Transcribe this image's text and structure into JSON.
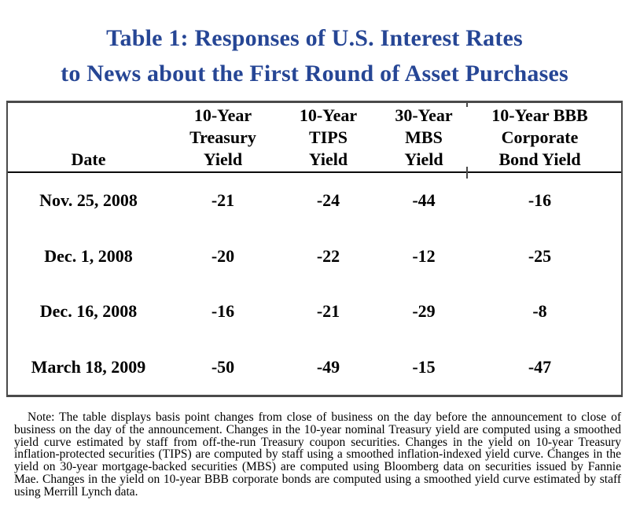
{
  "title": {
    "line1": "Table 1: Responses of U.S. Interest Rates",
    "line2": "to News about the First Round of Asset Purchases"
  },
  "colors": {
    "title_blue": "#264695",
    "table_border": "#4a4a4a",
    "text": "#000000"
  },
  "table": {
    "header": {
      "date_label": "Date",
      "cols": [
        {
          "lines": [
            "10-Year",
            "Treasury",
            "Yield"
          ]
        },
        {
          "lines": [
            "10-Year",
            "TIPS",
            "Yield"
          ]
        },
        {
          "lines": [
            "30-Year",
            "MBS",
            "Yield"
          ]
        },
        {
          "lines": [
            "10-Year BBB",
            "Corporate",
            "Bond Yield"
          ]
        }
      ]
    },
    "rows": [
      {
        "date": "Nov. 25, 2008",
        "values": [
          "-21",
          "-24",
          "-44",
          "-16"
        ]
      },
      {
        "date": "Dec. 1, 2008",
        "values": [
          "-20",
          "-22",
          "-12",
          "-25"
        ]
      },
      {
        "date": "Dec. 16, 2008",
        "values": [
          "-16",
          "-21",
          "-29",
          "-8"
        ]
      },
      {
        "date": "March 18, 2009",
        "values": [
          "-50",
          "-49",
          "-15",
          "-47"
        ]
      }
    ]
  },
  "note": "Note: The table displays basis point changes from close of business on the day before the announcement to close of business on the day of the announcement.  Changes in the 10-year nominal Treasury yield are computed using a smoothed yield curve estimated by staff from off-the-run Treasury coupon securities.  Changes in the yield on 10-year Treasury inflation-protected securities (TIPS) are computed by staff using a smoothed inflation-indexed yield curve.  Changes in the yield on 30-year mortgage-backed securities (MBS) are computed using Bloomberg data on securities issued by Fannie Mae.  Changes in the yield on 10-year BBB corporate bonds are computed using a smoothed yield curve estimated by staff using Merrill Lynch data.",
  "chart_data": {
    "type": "table",
    "title": "Table 1: Responses of U.S. Interest Rates to News about the First Round of Asset Purchases",
    "columns": [
      "Date",
      "10-Year Treasury Yield",
      "10-Year TIPS Yield",
      "30-Year MBS Yield",
      "10-Year BBB Corporate Bond Yield"
    ],
    "rows": [
      [
        "Nov. 25, 2008",
        -21,
        -24,
        -44,
        -16
      ],
      [
        "Dec. 1, 2008",
        -20,
        -22,
        -12,
        -25
      ],
      [
        "Dec. 16, 2008",
        -16,
        -21,
        -29,
        -8
      ],
      [
        "March 18, 2009",
        -50,
        -49,
        -15,
        -47
      ]
    ],
    "units": "basis points"
  }
}
